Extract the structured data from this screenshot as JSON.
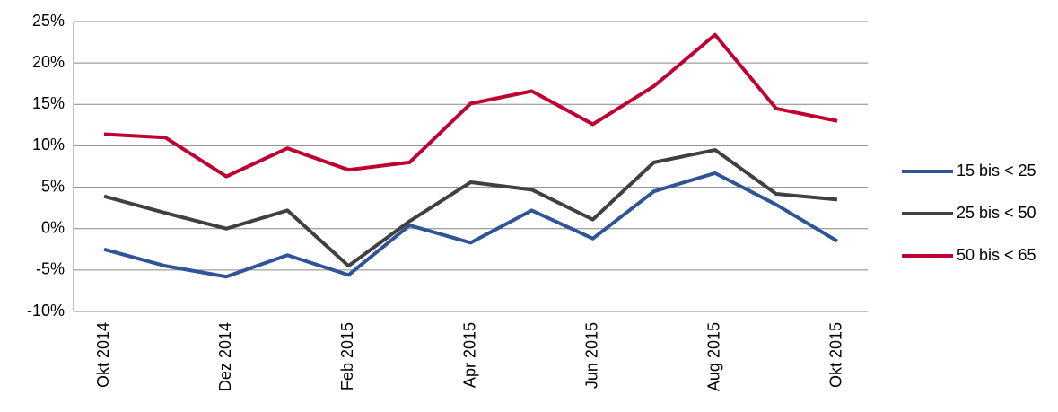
{
  "chart_data": {
    "type": "line",
    "categories": [
      "Okt 2014",
      null,
      "Dez 2014",
      null,
      "Feb 2015",
      null,
      "Apr 2015",
      null,
      "Jun 2015",
      null,
      "Aug 2015",
      null,
      "Okt 2015"
    ],
    "series": [
      {
        "name": "15 bis < 25",
        "color": "#2f5597",
        "values": [
          -2.5,
          -4.5,
          -5.8,
          -3.2,
          -5.6,
          0.4,
          -1.7,
          2.2,
          -1.2,
          4.5,
          6.7,
          2.9,
          -1.5
        ]
      },
      {
        "name": "25 bis < 50",
        "color": "#404040",
        "values": [
          3.9,
          1.9,
          0,
          2.2,
          -4.5,
          0.9,
          5.6,
          4.7,
          1.1,
          8.0,
          9.5,
          4.2,
          3.5
        ]
      },
      {
        "name": "50 bis < 65",
        "color": "#c00030",
        "values": [
          11.4,
          11.0,
          6.3,
          9.7,
          7.1,
          8.0,
          15.1,
          16.6,
          12.6,
          17.2,
          23.4,
          14.5,
          13.0
        ]
      }
    ],
    "ylim": [
      -10,
      25
    ],
    "yticks": [
      {
        "value": -10,
        "label": "-10%"
      },
      {
        "value": -5,
        "label": "-5%"
      },
      {
        "value": 0,
        "label": "0%"
      },
      {
        "value": 5,
        "label": "5%"
      },
      {
        "value": 10,
        "label": "10%"
      },
      {
        "value": 15,
        "label": "15%"
      },
      {
        "value": 20,
        "label": "20%"
      },
      {
        "value": 25,
        "label": "25%"
      }
    ],
    "grid": true,
    "legend": "right"
  }
}
